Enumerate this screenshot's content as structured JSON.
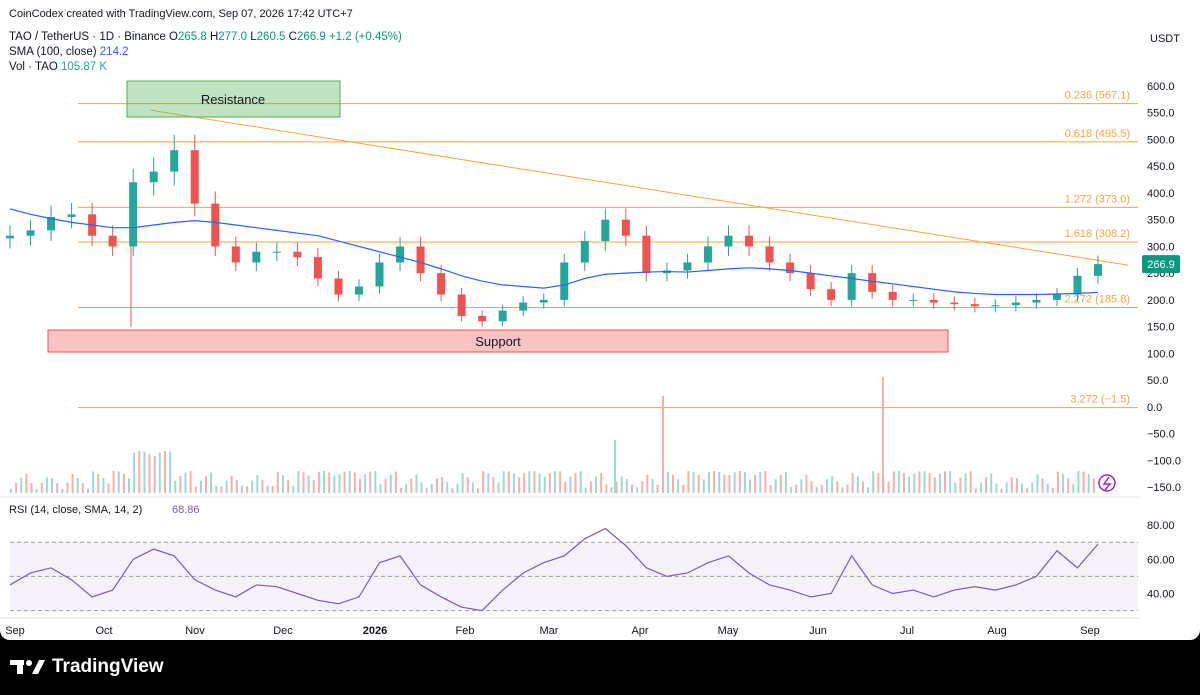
{
  "attribution": "CoinCodex created with TradingView.com, Sep 07, 2026 17:42 UTC+7",
  "header": {
    "symbol": "TAO / TetherUS · 1D · Binance",
    "o_label": "O",
    "o": "265.8",
    "h_label": "H",
    "h": "277.0",
    "l_label": "L",
    "l": "260.5",
    "c_label": "C",
    "c": "266.9",
    "change": "+1.2 (+0.45%)",
    "sma_label": "SMA (100, close)",
    "sma_value": "214.2",
    "vol_label": "Vol · TAO",
    "vol_value": "105.87 K"
  },
  "currency": "USDT",
  "price_axis": [
    "600.0",
    "550.0",
    "500.0",
    "450.0",
    "400.0",
    "350.0",
    "300.0",
    "250.0",
    "200.0",
    "150.0",
    "100.0",
    "50.0",
    "0.0",
    "−50.0",
    "−100.0",
    "−150.0"
  ],
  "current_price": "266.9",
  "rsi": {
    "label": "RSI (14, close, SMA, 14, 2)",
    "value": "68.86",
    "axis": [
      "80.00",
      "60.00",
      "40.00"
    ]
  },
  "time_axis": [
    "Sep",
    "Oct",
    "Nov",
    "Dec",
    "2026",
    "Feb",
    "Mar",
    "Apr",
    "May",
    "Jun",
    "Jul",
    "Aug",
    "Sep"
  ],
  "annotations": {
    "resistance": "Resistance",
    "support": "Support"
  },
  "fib_levels": [
    {
      "label": "0.236 (567.1)",
      "price": 567.1
    },
    {
      "label": "0.618 (495.5)",
      "price": 495.5
    },
    {
      "label": "1.272 (373.0)",
      "price": 373.0
    },
    {
      "label": "1.618 (308.2)",
      "price": 308.2
    },
    {
      "label": "2.272 (185.8)",
      "price": 185.8
    },
    {
      "label": "3.272 (−1.5)",
      "price": -1.5
    }
  ],
  "colors": {
    "up": "#26a69a",
    "down": "#ef5350",
    "fib": "#f7a53a",
    "sma": "#2962ff",
    "rsi": "#7e57c2",
    "trend": "#f7a53a"
  },
  "brand": "TradingView",
  "chart_data": {
    "type": "candlestick",
    "title": "TAO / TetherUS · 1D · Binance",
    "x": [
      "2025-09-01",
      "2025-09-08",
      "2025-09-15",
      "2025-09-22",
      "2025-09-29",
      "2025-10-06",
      "2025-10-13",
      "2025-10-20",
      "2025-10-27",
      "2025-11-03",
      "2025-11-10",
      "2025-11-17",
      "2025-11-24",
      "2025-12-01",
      "2025-12-08",
      "2025-12-15",
      "2025-12-22",
      "2025-12-29",
      "2026-01-05",
      "2026-01-12",
      "2026-01-19",
      "2026-01-26",
      "2026-02-02",
      "2026-02-09",
      "2026-02-16",
      "2026-02-23",
      "2026-03-02",
      "2026-03-09",
      "2026-03-16",
      "2026-03-23",
      "2026-03-30",
      "2026-04-06",
      "2026-04-13",
      "2026-04-20",
      "2026-04-27",
      "2026-05-04",
      "2026-05-11",
      "2026-05-18",
      "2026-05-25",
      "2026-06-01",
      "2026-06-08",
      "2026-06-15",
      "2026-06-22",
      "2026-06-29",
      "2026-07-06",
      "2026-07-13",
      "2026-07-20",
      "2026-07-27",
      "2026-08-03",
      "2026-08-10",
      "2026-08-17",
      "2026-08-24",
      "2026-08-31",
      "2026-09-07"
    ],
    "series": [
      {
        "name": "TAO / TetherUS",
        "values": [
          320,
          330,
          355,
          360,
          320,
          300,
          420,
          440,
          480,
          380,
          300,
          270,
          290,
          290,
          280,
          240,
          210,
          225,
          270,
          300,
          250,
          210,
          170,
          160,
          180,
          195,
          200,
          270,
          310,
          350,
          320,
          250,
          255,
          270,
          300,
          320,
          300,
          270,
          250,
          220,
          200,
          250,
          215,
          200,
          200,
          195,
          192,
          188,
          190,
          195,
          200,
          210,
          245,
          266.9
        ]
      }
    ],
    "sma": {
      "name": "SMA (100, close)",
      "values": [
        370,
        360,
        352,
        345,
        340,
        335,
        335,
        340,
        345,
        348,
        345,
        340,
        335,
        330,
        325,
        320,
        310,
        300,
        290,
        280,
        270,
        258,
        245,
        235,
        228,
        225,
        222,
        228,
        240,
        248,
        250,
        252,
        253,
        252,
        255,
        258,
        260,
        258,
        255,
        250,
        245,
        240,
        235,
        230,
        225,
        220,
        215,
        212,
        210,
        210,
        210,
        211,
        212,
        214.2
      ]
    },
    "volume": {
      "name": "Vol · TAO"
    },
    "rsi": {
      "name": "RSI (14, close, SMA, 14, 2)",
      "values": [
        45,
        52,
        55,
        48,
        38,
        42,
        60,
        66,
        62,
        48,
        42,
        38,
        45,
        44,
        40,
        36,
        34,
        38,
        58,
        62,
        45,
        38,
        32,
        30,
        42,
        52,
        58,
        62,
        72,
        78,
        68,
        55,
        50,
        52,
        58,
        62,
        52,
        45,
        42,
        38,
        40,
        62,
        45,
        40,
        42,
        38,
        42,
        44,
        42,
        45,
        50,
        65,
        55,
        68.86
      ],
      "ylim": [
        20,
        90
      ]
    },
    "price_ylim": [
      -150,
      600
    ],
    "fib": [
      567.1,
      495.5,
      373.0,
      308.2,
      185.8,
      -1.5
    ]
  }
}
